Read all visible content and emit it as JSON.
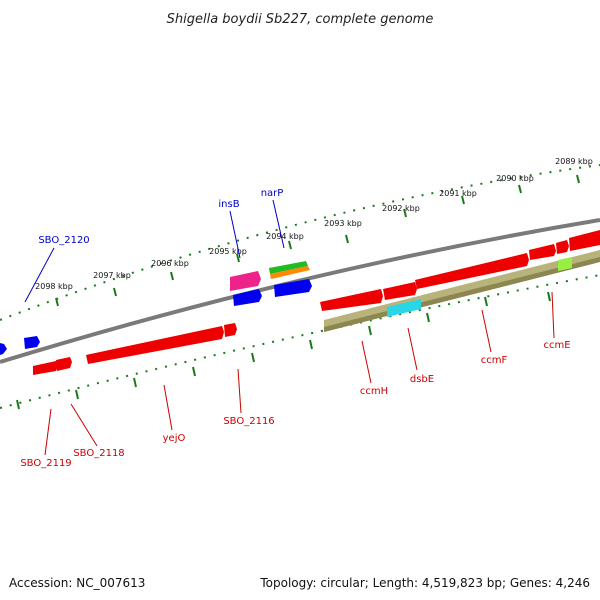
{
  "title": "Shigella boydii Sb227, complete genome",
  "scale_labels": [
    "2089 kbp",
    "2090 kbp",
    "2091 kbp",
    "2092 kbp",
    "2093 kbp",
    "2094 kbp",
    "2095 kbp",
    "2096 kbp",
    "2097 kbp",
    "2098 kbp"
  ],
  "gene_labels": {
    "SBO_2120": "SBO_2120",
    "insB": "insB",
    "narP": "narP",
    "SBO_2119": "SBO_2119",
    "SBO_2118": "SBO_2118",
    "yejO": "yejO",
    "SBO_2116": "SBO_2116",
    "ccmH": "ccmH",
    "dsbE": "dsbE",
    "ccmF": "ccmF",
    "ccmE": "ccmE"
  },
  "colors": {
    "forward_label": "#0000cc",
    "reverse_label": "#cc0000",
    "scale_ticks": "#1a7a1a",
    "backbone": "#7a7a7a"
  },
  "footer": {
    "accession": "Accession: NC_007613",
    "summary": "Topology: circular; Length: 4,519,823 bp; Genes: 4,246"
  }
}
